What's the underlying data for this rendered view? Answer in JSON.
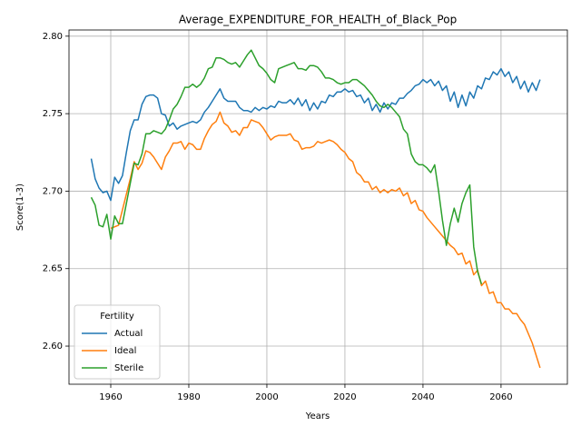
{
  "chart_data": {
    "type": "line",
    "title": "Average_EXPENDITURE_FOR_HEALTH_of_Black_Pop",
    "xlabel": "Years",
    "ylabel": "Score(1-3)",
    "legend_title": "Fertility",
    "legend": "lower left",
    "grid": true,
    "xlim": [
      1949.3,
      2077
    ],
    "xticks": [
      1960,
      1980,
      2000,
      2020,
      2040,
      2060
    ],
    "ylim": [
      2.5754,
      2.804
    ],
    "yticks": [
      {
        "value": 2.6,
        "label": "2.60"
      },
      2.65,
      {
        "value": 2.7,
        "label": "2.70"
      },
      2.75,
      {
        "value": 2.8,
        "label": "2.80"
      }
    ],
    "x": [
      1955,
      1956,
      1957,
      1958,
      1959,
      1960,
      1961,
      1962,
      1963,
      1964,
      1965,
      1966,
      1967,
      1968,
      1969,
      1970,
      1971,
      1972,
      1973,
      1974,
      1975,
      1976,
      1977,
      1978,
      1979,
      1980,
      1981,
      1982,
      1983,
      1984,
      1985,
      1986,
      1987,
      1988,
      1989,
      1990,
      1991,
      1992,
      1993,
      1994,
      1995,
      1996,
      1997,
      1998,
      1999,
      2000,
      2001,
      2002,
      2003,
      2004,
      2005,
      2006,
      2007,
      2008,
      2009,
      2010,
      2011,
      2012,
      2013,
      2014,
      2015,
      2016,
      2017,
      2018,
      2019,
      2020,
      2021,
      2022,
      2023,
      2024,
      2025,
      2026,
      2027,
      2028,
      2029,
      2030,
      2031,
      2032,
      2033,
      2034,
      2035,
      2036,
      2037,
      2038,
      2039,
      2040,
      2041,
      2042,
      2043,
      2044,
      2045,
      2046,
      2047,
      2048,
      2049,
      2050,
      2051,
      2052,
      2053,
      2054,
      2055,
      2056,
      2057,
      2058,
      2059,
      2060,
      2061,
      2062,
      2063,
      2064,
      2065,
      2066,
      2067,
      2068,
      2069,
      2070
    ],
    "series": [
      {
        "name": "Actual",
        "color": "#1f77b4",
        "values": [
          2.721,
          2.708,
          2.702,
          2.699,
          2.7,
          2.694,
          2.709,
          2.705,
          2.71,
          2.725,
          2.739,
          2.746,
          2.746,
          2.756,
          2.761,
          2.762,
          2.762,
          2.76,
          2.75,
          2.749,
          2.742,
          2.744,
          2.74,
          2.742,
          2.743,
          2.744,
          2.745,
          2.744,
          2.746,
          2.751,
          2.754,
          2.758,
          2.762,
          2.766,
          2.76,
          2.758,
          2.758,
          2.758,
          2.754,
          2.752,
          2.752,
          2.751,
          2.754,
          2.752,
          2.754,
          2.753,
          2.755,
          2.754,
          2.758,
          2.757,
          2.757,
          2.759,
          2.756,
          2.76,
          2.755,
          2.759,
          2.752,
          2.757,
          2.753,
          2.758,
          2.757,
          2.762,
          2.761,
          2.764,
          2.764,
          2.766,
          2.764,
          2.765,
          2.761,
          2.762,
          2.757,
          2.76,
          2.752,
          2.756,
          2.751,
          2.757,
          2.753,
          2.757,
          2.756,
          2.76,
          2.76,
          2.763,
          2.765,
          2.768,
          2.769,
          2.772,
          2.77,
          2.772,
          2.768,
          2.771,
          2.765,
          2.768,
          2.758,
          2.764,
          2.754,
          2.762,
          2.755,
          2.764,
          2.76,
          2.768,
          2.766,
          2.773,
          2.772,
          2.777,
          2.775,
          2.779,
          2.774,
          2.777,
          2.77,
          2.774,
          2.766,
          2.771,
          2.764,
          2.77,
          2.765,
          2.772
        ]
      },
      {
        "name": "Ideal",
        "color": "#ff7f0e",
        "values": [
          null,
          null,
          null,
          null,
          null,
          2.676,
          2.677,
          2.678,
          2.688,
          2.698,
          2.708,
          2.719,
          2.714,
          2.718,
          2.726,
          2.725,
          2.722,
          2.718,
          2.714,
          2.722,
          2.726,
          2.731,
          2.731,
          2.732,
          2.727,
          2.731,
          2.73,
          2.727,
          2.727,
          2.734,
          2.739,
          2.743,
          2.745,
          2.751,
          2.744,
          2.742,
          2.738,
          2.739,
          2.736,
          2.741,
          2.741,
          2.746,
          2.745,
          2.744,
          2.741,
          2.737,
          2.733,
          2.735,
          2.736,
          2.736,
          2.736,
          2.737,
          2.733,
          2.732,
          2.727,
          2.728,
          2.728,
          2.729,
          2.732,
          2.731,
          2.732,
          2.733,
          2.732,
          2.73,
          2.727,
          2.725,
          2.721,
          2.719,
          2.712,
          2.71,
          2.706,
          2.706,
          2.701,
          2.703,
          2.699,
          2.701,
          2.699,
          2.701,
          2.7,
          2.702,
          2.697,
          2.699,
          2.692,
          2.694,
          2.688,
          2.687,
          2.683,
          2.68,
          2.677,
          2.674,
          2.671,
          2.668,
          2.665,
          2.663,
          2.659,
          2.66,
          2.653,
          2.655,
          2.646,
          2.649,
          2.639,
          2.642,
          2.634,
          2.635,
          2.628,
          2.628,
          2.624,
          2.624,
          2.621,
          2.621,
          2.617,
          2.614,
          2.608,
          2.602,
          2.594,
          2.586
        ]
      },
      {
        "name": "Sterile",
        "color": "#2ca02c",
        "values": [
          2.696,
          2.691,
          2.678,
          2.677,
          2.685,
          2.669,
          2.684,
          2.679,
          2.679,
          2.692,
          2.705,
          2.718,
          2.717,
          2.724,
          2.737,
          2.737,
          2.739,
          2.738,
          2.737,
          2.74,
          2.746,
          2.753,
          2.756,
          2.761,
          2.767,
          2.767,
          2.769,
          2.767,
          2.769,
          2.773,
          2.779,
          2.78,
          2.786,
          2.786,
          2.785,
          2.783,
          2.782,
          2.783,
          2.78,
          2.784,
          2.788,
          2.791,
          2.786,
          2.781,
          2.779,
          2.776,
          2.772,
          2.77,
          2.779,
          2.78,
          2.781,
          2.782,
          2.783,
          2.779,
          2.779,
          2.778,
          2.781,
          2.781,
          2.78,
          2.777,
          2.773,
          2.773,
          2.772,
          2.77,
          2.769,
          2.77,
          2.77,
          2.772,
          2.772,
          2.77,
          2.768,
          2.765,
          2.762,
          2.758,
          2.755,
          2.754,
          2.756,
          2.754,
          2.751,
          2.748,
          2.74,
          2.737,
          2.724,
          2.719,
          2.717,
          2.717,
          2.715,
          2.712,
          2.717,
          2.7,
          2.681,
          2.665,
          2.679,
          2.689,
          2.68,
          2.692,
          2.699,
          2.704,
          2.664,
          2.648,
          2.64,
          null,
          null,
          null,
          null,
          null,
          null,
          null,
          null,
          null,
          null,
          null,
          null,
          null,
          null,
          null
        ]
      }
    ]
  }
}
